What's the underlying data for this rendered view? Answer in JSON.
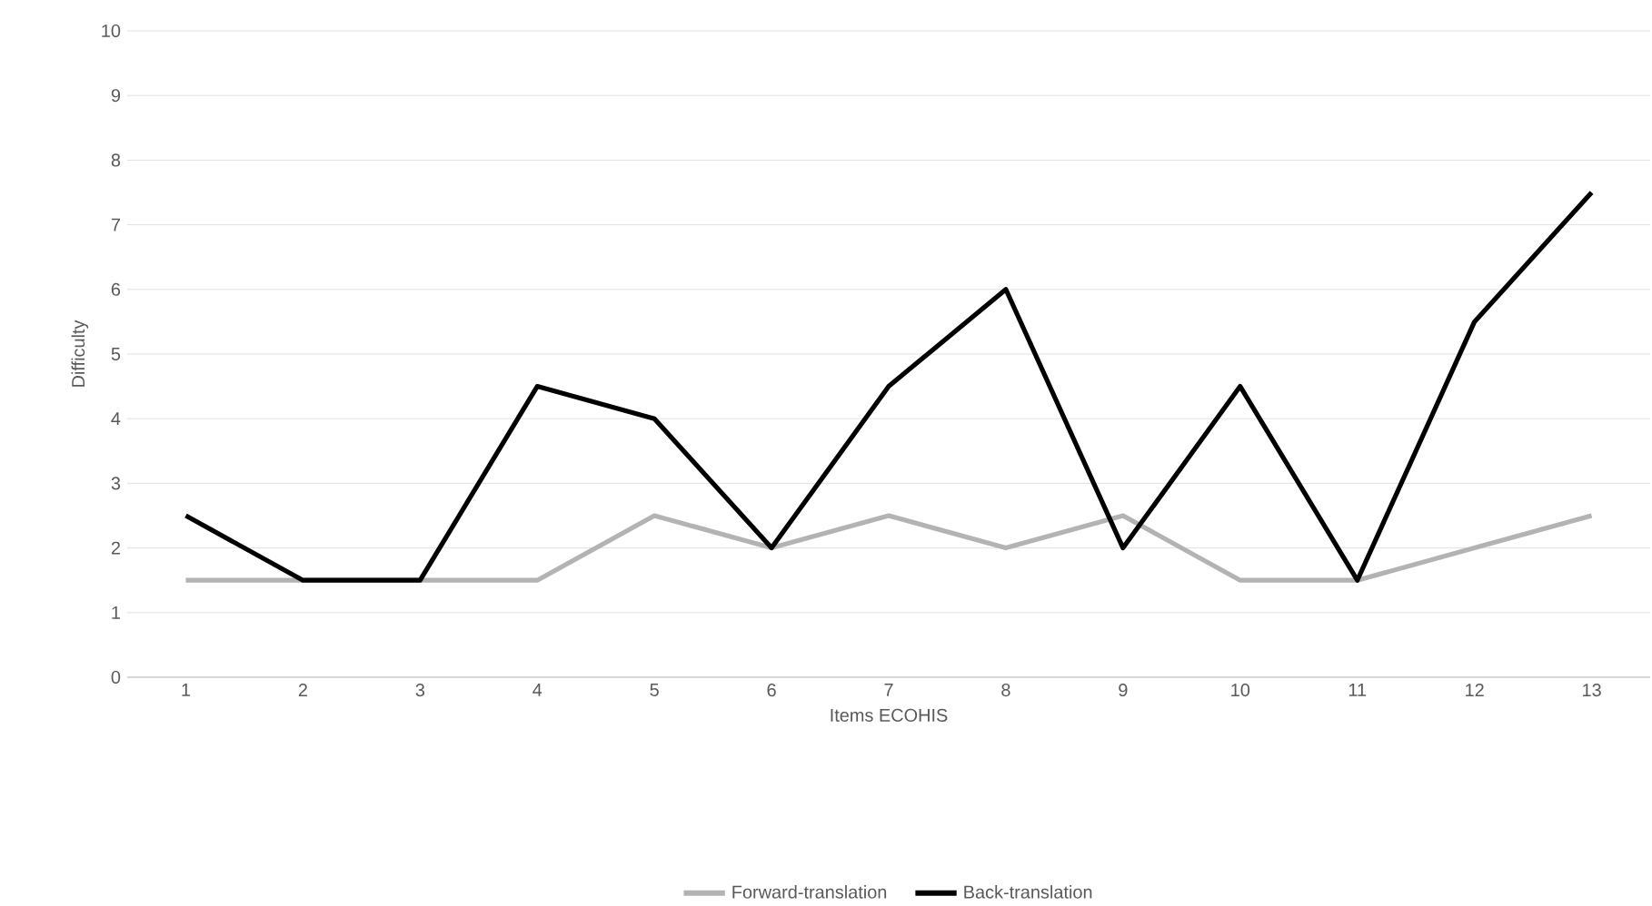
{
  "chart_data": {
    "type": "line",
    "xlabel": "Items ECOHIS",
    "ylabel": "Difficulty",
    "categories": [
      "1",
      "2",
      "3",
      "4",
      "5",
      "6",
      "7",
      "8",
      "9",
      "10",
      "11",
      "12",
      "13"
    ],
    "series": [
      {
        "name": "Forward-translation",
        "color": "#b3b3b3",
        "values": [
          1.5,
          1.5,
          1.5,
          1.5,
          2.5,
          2,
          2.5,
          2,
          2.5,
          1.5,
          1.5,
          2,
          2.5
        ]
      },
      {
        "name": "Back-translation",
        "color": "#000000",
        "values": [
          2.5,
          1.5,
          1.5,
          4.5,
          4,
          2,
          4.5,
          6,
          2,
          4.5,
          1.5,
          5.5,
          7.5
        ]
      }
    ],
    "ylim": [
      0,
      10
    ],
    "yticks": [
      0,
      1,
      2,
      3,
      4,
      5,
      6,
      7,
      8,
      9,
      10
    ],
    "grid": "y",
    "legend": "bottom",
    "marker": "none",
    "line_style": "solid"
  }
}
